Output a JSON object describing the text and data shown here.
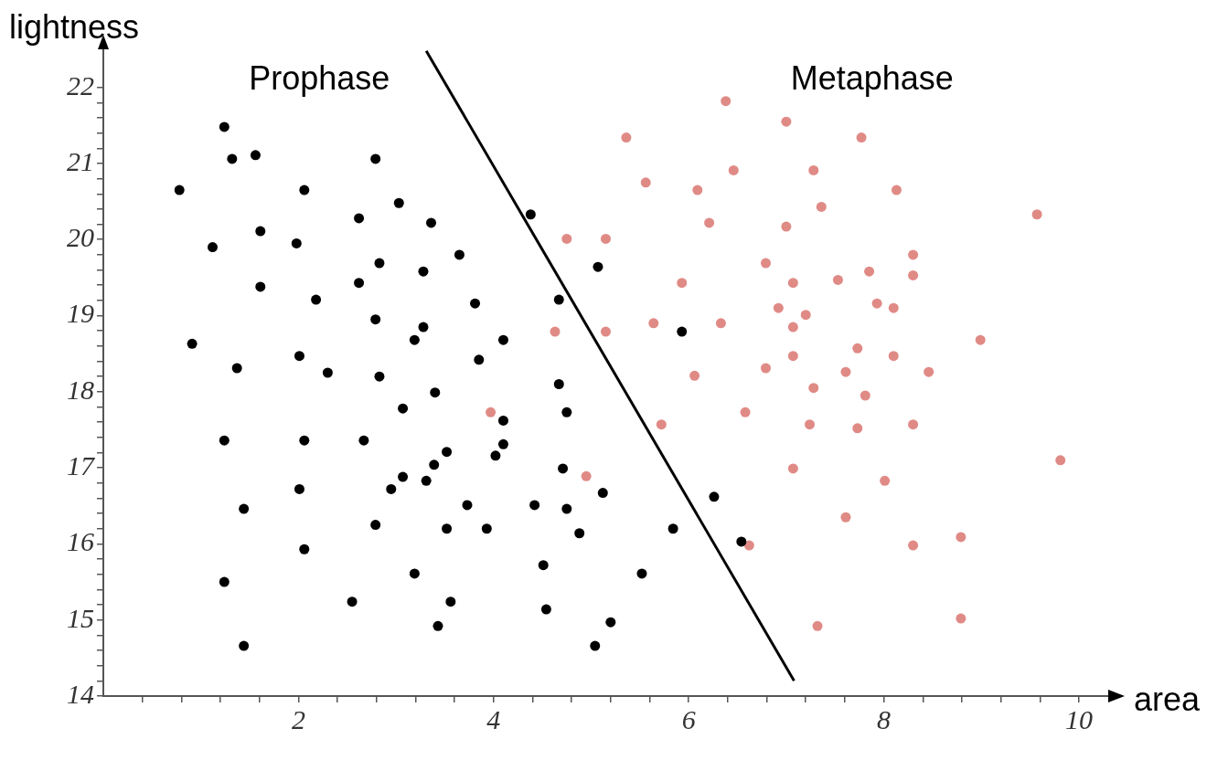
{
  "chart_data": {
    "type": "scatter",
    "xlabel": "area",
    "ylabel": "lightness",
    "annotations": [
      "Prophase",
      "Metaphase"
    ],
    "xlim": [
      0,
      10.3
    ],
    "ylim": [
      14,
      22.5
    ],
    "xticks": [
      {
        "value": 0.4,
        "label": null
      },
      {
        "value": 0.8,
        "label": null
      },
      {
        "value": 1.2,
        "label": null
      },
      {
        "value": 1.6,
        "label": null
      },
      2,
      {
        "value": 2.4,
        "label": null
      },
      {
        "value": 2.8,
        "label": null
      },
      {
        "value": 3.2,
        "label": null
      },
      {
        "value": 3.6,
        "label": null
      },
      4,
      {
        "value": 4.4,
        "label": null
      },
      {
        "value": 4.8,
        "label": null
      },
      {
        "value": 5.2,
        "label": null
      },
      {
        "value": 5.6,
        "label": null
      },
      6,
      {
        "value": 6.4,
        "label": null
      },
      {
        "value": 6.8,
        "label": null
      },
      {
        "value": 7.2,
        "label": null
      },
      {
        "value": 7.6,
        "label": null
      },
      8,
      {
        "value": 8.4,
        "label": null
      },
      {
        "value": 8.8,
        "label": null
      },
      {
        "value": 9.2,
        "label": null
      },
      {
        "value": 9.6,
        "label": null
      },
      10
    ],
    "yticks": [
      14,
      {
        "value": 14.2,
        "label": null
      },
      {
        "value": 14.4,
        "label": null
      },
      {
        "value": 14.6,
        "label": null
      },
      {
        "value": 14.8,
        "label": null
      },
      15,
      {
        "value": 15.2,
        "label": null
      },
      {
        "value": 15.4,
        "label": null
      },
      {
        "value": 15.6,
        "label": null
      },
      {
        "value": 15.8,
        "label": null
      },
      16,
      {
        "value": 16.2,
        "label": null
      },
      {
        "value": 16.4,
        "label": null
      },
      {
        "value": 16.6,
        "label": null
      },
      {
        "value": 16.8,
        "label": null
      },
      17,
      {
        "value": 17.2,
        "label": null
      },
      {
        "value": 17.4,
        "label": null
      },
      {
        "value": 17.6,
        "label": null
      },
      {
        "value": 17.8,
        "label": null
      },
      18,
      {
        "value": 18.2,
        "label": null
      },
      {
        "value": 18.4,
        "label": null
      },
      {
        "value": 18.6,
        "label": null
      },
      {
        "value": 18.8,
        "label": null
      },
      19,
      {
        "value": 19.2,
        "label": null
      },
      {
        "value": 19.4,
        "label": null
      },
      {
        "value": 19.6,
        "label": null
      },
      {
        "value": 19.8,
        "label": null
      },
      20,
      {
        "value": 20.2,
        "label": null
      },
      {
        "value": 20.4,
        "label": null
      },
      {
        "value": 20.6,
        "label": null
      },
      {
        "value": 20.8,
        "label": null
      },
      21,
      {
        "value": 21.2,
        "label": null
      },
      {
        "value": 21.4,
        "label": null
      },
      {
        "value": 21.6,
        "label": null
      },
      {
        "value": 21.8,
        "label": null
      },
      22
    ],
    "marker": "circle",
    "series": [
      {
        "color": "#000000",
        "x": [
          1.24,
          1.32,
          1.56,
          2.79,
          0.78,
          2.06,
          3.03,
          2.62,
          3.36,
          1.61,
          1.98,
          1.12,
          2.83,
          3.28,
          2.62,
          1.61,
          2.18,
          2.79,
          3.28,
          3.19,
          0.91,
          2.01,
          1.37,
          2.3,
          2.83,
          3.4,
          4.38,
          3.65,
          5.07,
          3.81,
          4.67,
          4.1,
          5.93,
          3.85,
          4.67,
          4.1,
          4.75,
          3.52,
          4.1,
          4.02,
          3.39,
          4.71,
          5.12,
          6.26,
          3.73,
          4.42,
          4.75,
          3.52,
          3.93,
          4.88,
          5.84,
          6.54,
          4.51,
          5.52,
          3.56,
          4.54,
          3.43,
          5.2,
          5.04,
          3.07,
          1.24,
          2.06,
          2.67,
          3.07,
          3.31,
          2.01,
          2.95,
          1.44,
          2.79,
          2.06,
          3.19,
          1.24,
          2.55,
          1.44
        ],
        "values": [
          21.48,
          21.06,
          21.11,
          21.06,
          20.65,
          20.65,
          20.48,
          20.28,
          20.22,
          20.11,
          19.95,
          19.9,
          19.69,
          19.58,
          19.43,
          19.38,
          19.21,
          18.95,
          18.85,
          18.68,
          18.63,
          18.47,
          18.31,
          18.25,
          18.2,
          17.99,
          20.33,
          19.8,
          19.64,
          19.16,
          19.21,
          18.68,
          18.79,
          18.42,
          18.1,
          17.62,
          17.73,
          17.21,
          17.31,
          17.16,
          17.04,
          16.99,
          16.67,
          16.62,
          16.51,
          16.51,
          16.46,
          16.2,
          16.2,
          16.14,
          16.2,
          16.03,
          15.72,
          15.61,
          15.24,
          15.14,
          14.92,
          14.97,
          14.66,
          17.78,
          17.36,
          17.36,
          17.36,
          16.88,
          16.83,
          16.72,
          16.72,
          16.46,
          16.25,
          15.93,
          15.61,
          15.5,
          15.24,
          14.66
        ]
      },
      {
        "color": "#e08a86",
        "x": [
          6.38,
          5.36,
          6.46,
          5.56,
          6.09,
          6.21,
          4.75,
          5.15,
          6.79,
          5.93,
          6.92,
          5.64,
          6.33,
          4.63,
          5.15,
          6.06,
          6.79,
          7.0,
          7.77,
          7.28,
          8.13,
          7.36,
          7.0,
          9.57,
          8.3,
          8.3,
          7.85,
          7.53,
          7.07,
          7.93,
          8.1,
          7.2,
          7.07,
          8.99,
          7.73,
          7.07,
          8.1,
          8.46,
          7.61,
          7.28,
          7.81,
          7.24,
          7.73,
          8.3,
          9.81,
          7.07,
          8.01,
          7.61,
          8.3,
          8.79,
          8.79,
          7.32,
          3.97,
          5.72,
          6.58,
          4.95,
          6.62
        ],
        "values": [
          21.82,
          21.34,
          20.91,
          20.75,
          20.65,
          20.22,
          20.01,
          20.01,
          19.69,
          19.43,
          19.1,
          18.9,
          18.9,
          18.79,
          18.79,
          18.21,
          18.31,
          21.55,
          21.34,
          20.91,
          20.65,
          20.43,
          20.17,
          20.33,
          19.8,
          19.53,
          19.58,
          19.47,
          19.43,
          19.16,
          19.1,
          19.01,
          18.85,
          18.68,
          18.57,
          18.47,
          18.47,
          18.26,
          18.26,
          18.05,
          17.95,
          17.57,
          17.52,
          17.57,
          17.1,
          16.99,
          16.83,
          16.35,
          15.98,
          16.09,
          15.02,
          14.92,
          17.73,
          17.57,
          17.73,
          16.89,
          15.98
        ]
      },
      {
        "type": "line",
        "color": "#000000",
        "line_style": "solid",
        "marker": "none",
        "x": [
          3.31,
          7.08
        ],
        "values": [
          22.48,
          14.2
        ]
      }
    ]
  }
}
